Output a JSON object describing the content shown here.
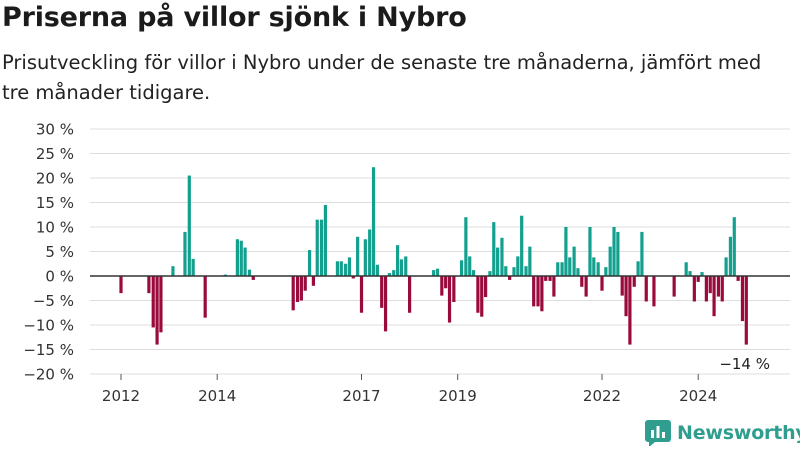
{
  "header": {
    "title": "Priserna på villor sjönk i Nybro",
    "subtitle": "Prisutveckling för villor i Nybro under de senaste tre månaderna, jämfört med tre månader tidigare."
  },
  "brand": {
    "name": "Newsworthy",
    "logo_icon": "bar-chart-logo-icon",
    "color": "#2f9e8f"
  },
  "colors": {
    "positive": "#13a08f",
    "negative": "#9a0a3d",
    "grid": "#dddddd",
    "axis": "#333333"
  },
  "chart_data": {
    "type": "bar",
    "title": "Priserna på villor sjönk i Nybro",
    "subtitle": "Prisutveckling för villor i Nybro under de senaste tre månaderna, jämfört med tre månader tidigare.",
    "xlabel": "",
    "ylabel": "",
    "ylim": [
      -20,
      30
    ],
    "y_ticks": [
      {
        "value": 30,
        "label": "30 %"
      },
      {
        "value": 25,
        "label": "25 %"
      },
      {
        "value": 20,
        "label": "20 %"
      },
      {
        "value": 15,
        "label": "15 %"
      },
      {
        "value": 10,
        "label": "10 %"
      },
      {
        "value": 5,
        "label": "5 %"
      },
      {
        "value": 0,
        "label": "0 %"
      },
      {
        "value": -5,
        "label": "−5 %"
      },
      {
        "value": -10,
        "label": "−10 %"
      },
      {
        "value": -15,
        "label": "−15 %"
      },
      {
        "value": -20,
        "label": "−20 %"
      }
    ],
    "x_ticks": [
      {
        "year": 2012,
        "label": "2012"
      },
      {
        "year": 2014,
        "label": "2014"
      },
      {
        "year": 2017,
        "label": "2017"
      },
      {
        "year": 2019,
        "label": "2019"
      },
      {
        "year": 2022,
        "label": "2022"
      },
      {
        "year": 2024,
        "label": "2024"
      }
    ],
    "grid": true,
    "bars": [
      {
        "t": 2012.0,
        "v": -3.5
      },
      {
        "t": 2012.58,
        "v": -3.5
      },
      {
        "t": 2012.67,
        "v": -10.5
      },
      {
        "t": 2012.75,
        "v": -14
      },
      {
        "t": 2012.83,
        "v": -11.5
      },
      {
        "t": 2013.08,
        "v": 2
      },
      {
        "t": 2013.33,
        "v": 9
      },
      {
        "t": 2013.42,
        "v": 20.5
      },
      {
        "t": 2013.5,
        "v": 3.5
      },
      {
        "t": 2013.75,
        "v": -8.5
      },
      {
        "t": 2014.17,
        "v": 0.3
      },
      {
        "t": 2014.42,
        "v": 7.5
      },
      {
        "t": 2014.5,
        "v": 7.2
      },
      {
        "t": 2014.58,
        "v": 5.8
      },
      {
        "t": 2014.67,
        "v": 1.3
      },
      {
        "t": 2014.75,
        "v": -0.8
      },
      {
        "t": 2015.58,
        "v": -7
      },
      {
        "t": 2015.67,
        "v": -5.3
      },
      {
        "t": 2015.75,
        "v": -5
      },
      {
        "t": 2015.83,
        "v": -3
      },
      {
        "t": 2015.92,
        "v": 5.3
      },
      {
        "t": 2016.0,
        "v": -2
      },
      {
        "t": 2016.08,
        "v": 11.5
      },
      {
        "t": 2016.17,
        "v": 11.5
      },
      {
        "t": 2016.25,
        "v": 14.5
      },
      {
        "t": 2016.5,
        "v": 3
      },
      {
        "t": 2016.58,
        "v": 3
      },
      {
        "t": 2016.67,
        "v": 2.5
      },
      {
        "t": 2016.75,
        "v": 3.8
      },
      {
        "t": 2016.83,
        "v": -0.5
      },
      {
        "t": 2016.92,
        "v": 8
      },
      {
        "t": 2017.0,
        "v": -7.5
      },
      {
        "t": 2017.08,
        "v": 7.5
      },
      {
        "t": 2017.17,
        "v": 9.5
      },
      {
        "t": 2017.25,
        "v": 22.2
      },
      {
        "t": 2017.33,
        "v": 2.3
      },
      {
        "t": 2017.42,
        "v": -6.5
      },
      {
        "t": 2017.5,
        "v": -11.3
      },
      {
        "t": 2017.58,
        "v": 0.6
      },
      {
        "t": 2017.67,
        "v": 1.2
      },
      {
        "t": 2017.75,
        "v": 6.3
      },
      {
        "t": 2017.83,
        "v": 3.4
      },
      {
        "t": 2017.92,
        "v": 4
      },
      {
        "t": 2018.0,
        "v": -7.5
      },
      {
        "t": 2018.5,
        "v": 1.2
      },
      {
        "t": 2018.58,
        "v": 1.5
      },
      {
        "t": 2018.67,
        "v": -4
      },
      {
        "t": 2018.75,
        "v": -2.5
      },
      {
        "t": 2018.83,
        "v": -9.5
      },
      {
        "t": 2018.92,
        "v": -5.3
      },
      {
        "t": 2019.08,
        "v": 3.2
      },
      {
        "t": 2019.17,
        "v": 12
      },
      {
        "t": 2019.25,
        "v": 4
      },
      {
        "t": 2019.33,
        "v": 1.2
      },
      {
        "t": 2019.42,
        "v": -7.5
      },
      {
        "t": 2019.5,
        "v": -8.3
      },
      {
        "t": 2019.58,
        "v": -4.3
      },
      {
        "t": 2019.67,
        "v": 1
      },
      {
        "t": 2019.75,
        "v": 11
      },
      {
        "t": 2019.83,
        "v": 5.8
      },
      {
        "t": 2019.92,
        "v": 7.8
      },
      {
        "t": 2020.0,
        "v": 2
      },
      {
        "t": 2020.08,
        "v": -0.8
      },
      {
        "t": 2020.17,
        "v": 1.8
      },
      {
        "t": 2020.25,
        "v": 4
      },
      {
        "t": 2020.33,
        "v": 12.3
      },
      {
        "t": 2020.42,
        "v": 2
      },
      {
        "t": 2020.5,
        "v": 6
      },
      {
        "t": 2020.58,
        "v": -6.2
      },
      {
        "t": 2020.67,
        "v": -6.2
      },
      {
        "t": 2020.75,
        "v": -7.2
      },
      {
        "t": 2020.83,
        "v": -1
      },
      {
        "t": 2020.92,
        "v": -1
      },
      {
        "t": 2021.0,
        "v": -4.2
      },
      {
        "t": 2021.08,
        "v": 2.8
      },
      {
        "t": 2021.17,
        "v": 2.8
      },
      {
        "t": 2021.25,
        "v": 10
      },
      {
        "t": 2021.33,
        "v": 3.8
      },
      {
        "t": 2021.42,
        "v": 6
      },
      {
        "t": 2021.5,
        "v": 1.6
      },
      {
        "t": 2021.58,
        "v": -2.2
      },
      {
        "t": 2021.67,
        "v": -4.2
      },
      {
        "t": 2021.75,
        "v": 10
      },
      {
        "t": 2021.83,
        "v": 3.8
      },
      {
        "t": 2021.92,
        "v": 2.8
      },
      {
        "t": 2022.0,
        "v": -3
      },
      {
        "t": 2022.08,
        "v": 1.8
      },
      {
        "t": 2022.17,
        "v": 6
      },
      {
        "t": 2022.25,
        "v": 10
      },
      {
        "t": 2022.33,
        "v": 9
      },
      {
        "t": 2022.42,
        "v": -4
      },
      {
        "t": 2022.5,
        "v": -8.2
      },
      {
        "t": 2022.58,
        "v": -14
      },
      {
        "t": 2022.67,
        "v": -2.2
      },
      {
        "t": 2022.75,
        "v": 3
      },
      {
        "t": 2022.83,
        "v": 9
      },
      {
        "t": 2022.92,
        "v": -5.2
      },
      {
        "t": 2023.08,
        "v": -6.2
      },
      {
        "t": 2023.5,
        "v": -4.2
      },
      {
        "t": 2023.75,
        "v": 2.8
      },
      {
        "t": 2023.83,
        "v": 1
      },
      {
        "t": 2023.92,
        "v": -5.2
      },
      {
        "t": 2024.0,
        "v": -1.2
      },
      {
        "t": 2024.08,
        "v": 0.8
      },
      {
        "t": 2024.17,
        "v": -5.2
      },
      {
        "t": 2024.25,
        "v": -3.5
      },
      {
        "t": 2024.33,
        "v": -8.2
      },
      {
        "t": 2024.42,
        "v": -4.2
      },
      {
        "t": 2024.5,
        "v": -5.2
      },
      {
        "t": 2024.58,
        "v": 3.8
      },
      {
        "t": 2024.67,
        "v": 8
      },
      {
        "t": 2024.75,
        "v": 12
      },
      {
        "t": 2024.83,
        "v": -1
      },
      {
        "t": 2024.92,
        "v": -9.2
      },
      {
        "t": 2025.0,
        "v": -14
      }
    ],
    "annotation": {
      "t": 2025.0,
      "v": -14,
      "label": "−14 %"
    }
  }
}
